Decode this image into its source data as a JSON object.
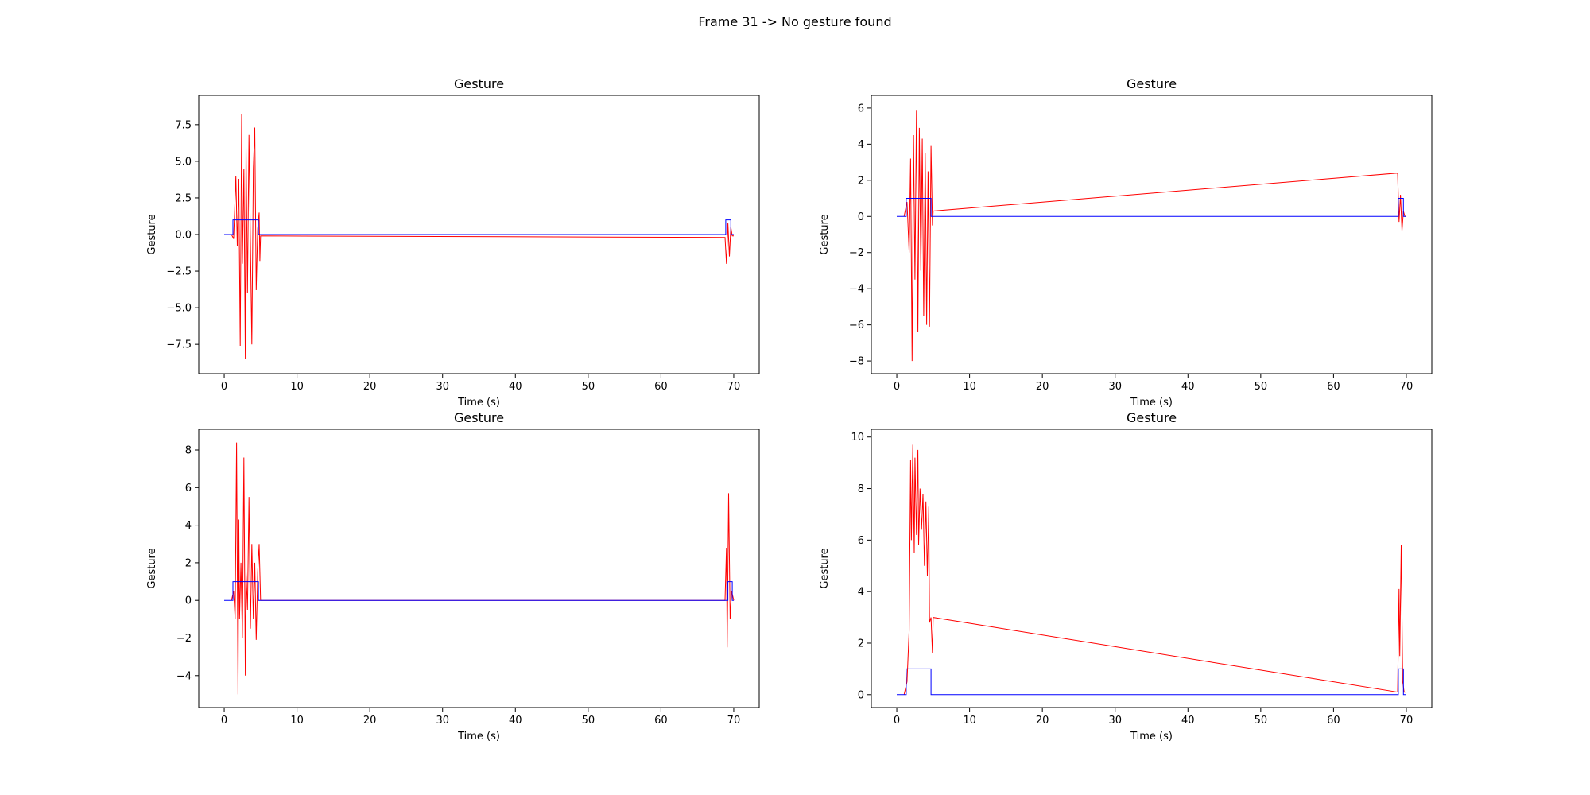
{
  "figure": {
    "suptitle": "Frame 31 -> No gesture found"
  },
  "chart_data": [
    {
      "type": "line",
      "title": "Gesture",
      "xlabel": "Time (s)",
      "ylabel": "Gesture",
      "xlim": [
        -3.5,
        73.5
      ],
      "ylim": [
        -9.5,
        9.5
      ],
      "xticks": [
        0,
        10,
        20,
        30,
        40,
        50,
        60,
        70
      ],
      "xtick_labels": [
        "0",
        "10",
        "20",
        "30",
        "40",
        "50",
        "60",
        "70"
      ],
      "yticks": [
        -7.5,
        -5.0,
        -2.5,
        0.0,
        2.5,
        5.0,
        7.5
      ],
      "ytick_labels": [
        "−7.5",
        "−5.0",
        "−2.5",
        "0.0",
        "2.5",
        "5.0",
        "7.5"
      ],
      "series": [
        {
          "color": "#ff0000",
          "x": [
            1.0,
            1.3,
            1.6,
            1.8,
            2.0,
            2.2,
            2.4,
            2.5,
            2.7,
            2.9,
            3.0,
            3.2,
            3.4,
            3.6,
            3.8,
            4.0,
            4.2,
            4.4,
            4.6,
            4.8,
            4.9,
            5.0,
            68.8,
            69.0,
            69.2,
            69.4,
            69.6,
            69.8,
            70.0
          ],
          "y": [
            0.0,
            -0.3,
            4.0,
            -0.8,
            3.8,
            -7.6,
            8.2,
            -2.0,
            4.5,
            -8.5,
            6.0,
            -4.0,
            6.8,
            -0.5,
            -7.5,
            4.5,
            7.3,
            -3.8,
            0.4,
            1.5,
            -1.8,
            -0.1,
            -0.2,
            -2.0,
            0.8,
            -1.5,
            0.5,
            -0.1,
            -0.1
          ]
        },
        {
          "color": "#0000ff",
          "x": [
            0.0,
            1.2,
            1.2,
            4.7,
            4.7,
            68.9,
            68.9,
            69.6,
            69.6,
            70.0
          ],
          "y": [
            0.0,
            0.0,
            1.0,
            1.0,
            0.0,
            0.0,
            1.0,
            1.0,
            0.0,
            0.0
          ]
        }
      ]
    },
    {
      "type": "line",
      "title": "Gesture",
      "xlabel": "Time (s)",
      "ylabel": "Gesture",
      "xlim": [
        -3.5,
        73.5
      ],
      "ylim": [
        -8.7,
        6.7
      ],
      "xticks": [
        0,
        10,
        20,
        30,
        40,
        50,
        60,
        70
      ],
      "xtick_labels": [
        "0",
        "10",
        "20",
        "30",
        "40",
        "50",
        "60",
        "70"
      ],
      "yticks": [
        -8,
        -6,
        -4,
        -2,
        0,
        2,
        4,
        6
      ],
      "ytick_labels": [
        "−8",
        "−6",
        "−4",
        "−2",
        "0",
        "2",
        "4",
        "6"
      ],
      "series": [
        {
          "color": "#ff0000",
          "x": [
            1.0,
            1.4,
            1.7,
            1.9,
            2.1,
            2.3,
            2.5,
            2.7,
            2.9,
            3.1,
            3.3,
            3.5,
            3.7,
            3.9,
            4.1,
            4.3,
            4.5,
            4.7,
            4.9,
            5.0,
            68.8,
            69.0,
            69.2,
            69.4,
            69.6,
            69.8,
            70.0
          ],
          "y": [
            0.0,
            0.8,
            -2.0,
            3.2,
            -8.0,
            4.5,
            -3.5,
            5.9,
            -6.4,
            4.9,
            -3.0,
            4.3,
            -5.5,
            3.5,
            -6.0,
            2.5,
            -6.1,
            3.9,
            -0.5,
            0.3,
            2.4,
            -0.3,
            1.2,
            -0.8,
            0.3,
            0.0,
            0.0
          ]
        },
        {
          "color": "#0000ff",
          "x": [
            0.0,
            1.3,
            1.3,
            4.7,
            4.7,
            68.9,
            68.9,
            69.6,
            69.6,
            70.0
          ],
          "y": [
            0.0,
            0.0,
            1.0,
            1.0,
            0.0,
            0.0,
            1.0,
            1.0,
            0.0,
            0.0
          ]
        }
      ]
    },
    {
      "type": "line",
      "title": "Gesture",
      "xlabel": "Time (s)",
      "ylabel": "Gesture",
      "xlim": [
        -3.5,
        73.5
      ],
      "ylim": [
        -5.7,
        9.1
      ],
      "xticks": [
        0,
        10,
        20,
        30,
        40,
        50,
        60,
        70
      ],
      "xtick_labels": [
        "0",
        "10",
        "20",
        "30",
        "40",
        "50",
        "60",
        "70"
      ],
      "yticks": [
        -4,
        -2,
        0,
        2,
        4,
        6,
        8
      ],
      "ytick_labels": [
        "−4",
        "−2",
        "0",
        "2",
        "4",
        "6",
        "8"
      ],
      "series": [
        {
          "color": "#ff0000",
          "x": [
            1.0,
            1.3,
            1.5,
            1.7,
            1.9,
            2.0,
            2.1,
            2.3,
            2.5,
            2.7,
            2.9,
            3.0,
            3.2,
            3.4,
            3.6,
            3.8,
            4.0,
            4.2,
            4.4,
            4.6,
            4.8,
            5.0,
            68.8,
            69.0,
            69.1,
            69.3,
            69.5,
            69.7,
            70.0
          ],
          "y": [
            0.0,
            0.5,
            -1.0,
            8.4,
            -5.0,
            4.3,
            -1.0,
            2.0,
            -2.0,
            7.6,
            -4.0,
            1.5,
            -0.5,
            5.5,
            -1.5,
            3.0,
            -1.0,
            2.0,
            -2.1,
            1.5,
            3.0,
            0.0,
            0.0,
            2.8,
            -2.5,
            5.7,
            -1.0,
            0.5,
            0.0
          ]
        },
        {
          "color": "#0000ff",
          "x": [
            0.0,
            1.2,
            1.2,
            4.7,
            4.7,
            69.2,
            69.2,
            69.8,
            69.8,
            70.0
          ],
          "y": [
            0.0,
            0.0,
            1.0,
            1.0,
            0.0,
            0.0,
            1.0,
            1.0,
            0.0,
            0.0
          ]
        }
      ]
    },
    {
      "type": "line",
      "title": "Gesture",
      "xlabel": "Time (s)",
      "ylabel": "Gesture",
      "xlim": [
        -3.5,
        73.5
      ],
      "ylim": [
        -0.5,
        10.3
      ],
      "xticks": [
        0,
        10,
        20,
        30,
        40,
        50,
        60,
        70
      ],
      "xtick_labels": [
        "0",
        "10",
        "20",
        "30",
        "40",
        "50",
        "60",
        "70"
      ],
      "yticks": [
        0,
        2,
        4,
        6,
        8,
        10
      ],
      "ytick_labels": [
        "0",
        "2",
        "4",
        "6",
        "8",
        "10"
      ],
      "series": [
        {
          "color": "#ff0000",
          "x": [
            1.0,
            1.4,
            1.7,
            1.9,
            2.0,
            2.2,
            2.4,
            2.5,
            2.7,
            2.9,
            3.0,
            3.2,
            3.4,
            3.6,
            3.8,
            4.0,
            4.2,
            4.4,
            4.5,
            4.7,
            4.9,
            5.0,
            68.8,
            69.0,
            69.1,
            69.3,
            69.5,
            69.7,
            70.0
          ],
          "y": [
            0.0,
            0.5,
            2.5,
            9.1,
            6.0,
            9.7,
            5.5,
            9.2,
            6.2,
            9.5,
            5.8,
            8.0,
            6.4,
            7.8,
            5.0,
            7.5,
            4.6,
            7.3,
            2.8,
            3.0,
            1.6,
            3.0,
            0.1,
            4.1,
            1.5,
            5.8,
            0.5,
            0.1,
            0.1
          ]
        },
        {
          "color": "#0000ff",
          "x": [
            0.0,
            1.3,
            1.3,
            4.7,
            4.7,
            68.9,
            68.9,
            69.6,
            69.6,
            70.0
          ],
          "y": [
            0.0,
            0.0,
            1.0,
            1.0,
            0.0,
            0.0,
            1.0,
            1.0,
            0.0,
            0.0
          ]
        }
      ]
    }
  ]
}
